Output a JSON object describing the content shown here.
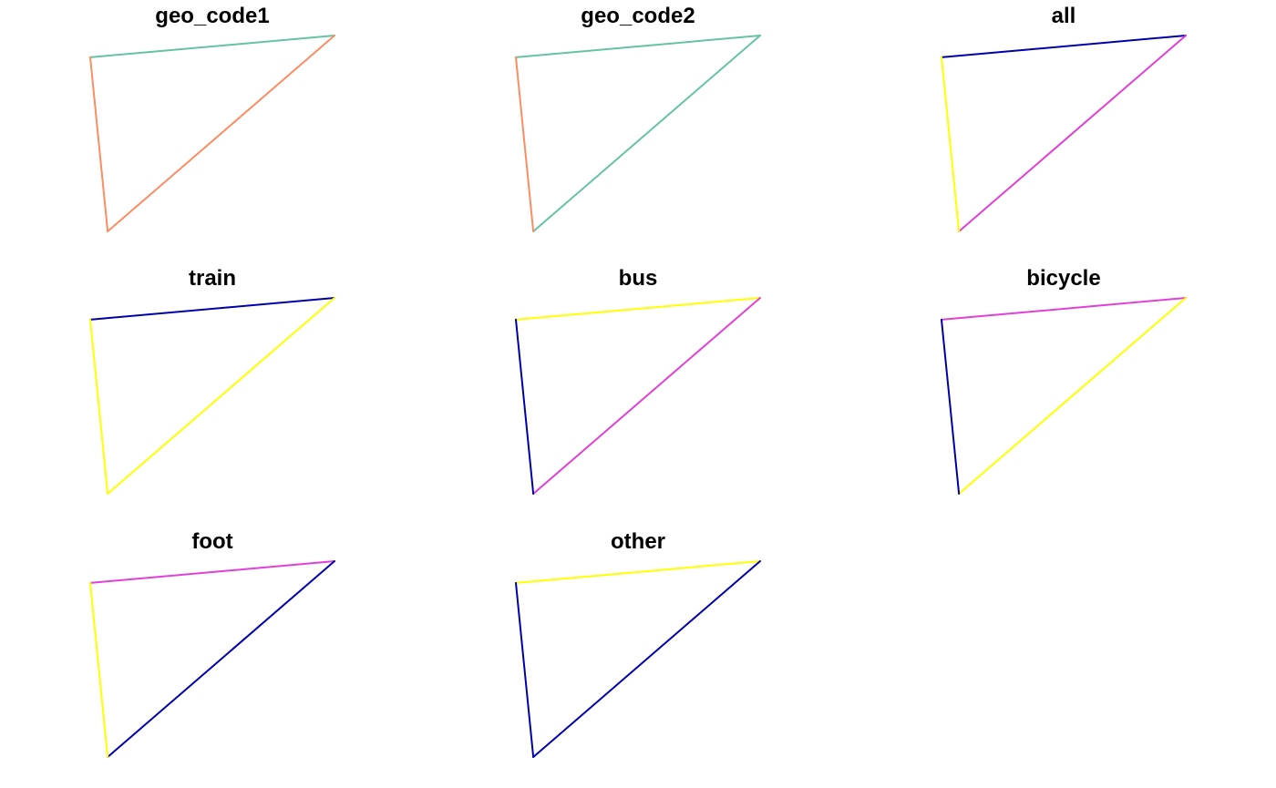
{
  "chart_data": {
    "type": "line",
    "layout": "faceted small multiples, 3 columns",
    "grid": false,
    "axes_visible": false,
    "legend": "none",
    "shared_geometry": {
      "nodes": {
        "A": {
          "x": -2.55,
          "y": 51.5
        },
        "B": {
          "x": -2.48,
          "y": 51.51
        },
        "C": {
          "x": -2.545,
          "y": 51.42
        }
      },
      "xlim": [
        -2.56,
        -2.47
      ],
      "ylim": [
        51.41,
        51.52
      ],
      "edges": [
        {
          "id": "AB",
          "from": "A",
          "to": "B"
        },
        {
          "id": "BC",
          "from": "B",
          "to": "C"
        },
        {
          "id": "AC",
          "from": "A",
          "to": "C"
        }
      ]
    },
    "palette": {
      "teal": "#66c2a5",
      "salmon": "#fc8d62",
      "navy": "#0000aa",
      "magenta": "#e040d8",
      "yellow": "#ffff00"
    },
    "panels": [
      {
        "title": "geo_code1",
        "edge_colors": {
          "AB": "teal",
          "BC": "salmon",
          "AC": "salmon"
        }
      },
      {
        "title": "geo_code2",
        "edge_colors": {
          "AB": "teal",
          "BC": "teal",
          "AC": "salmon"
        }
      },
      {
        "title": "all",
        "edge_colors": {
          "AB": "navy",
          "BC": "magenta",
          "AC": "yellow"
        }
      },
      {
        "title": "train",
        "edge_colors": {
          "AB": "navy",
          "BC": "yellow",
          "AC": "yellow"
        }
      },
      {
        "title": "bus",
        "edge_colors": {
          "AB": "yellow",
          "BC": "magenta",
          "AC": "navy"
        }
      },
      {
        "title": "bicycle",
        "edge_colors": {
          "AB": "magenta",
          "BC": "yellow",
          "AC": "navy"
        }
      },
      {
        "title": "foot",
        "edge_colors": {
          "AB": "magenta",
          "BC": "navy",
          "AC": "yellow"
        }
      },
      {
        "title": "other",
        "edge_colors": {
          "AB": "yellow",
          "BC": "navy",
          "AC": "navy"
        }
      }
    ]
  }
}
